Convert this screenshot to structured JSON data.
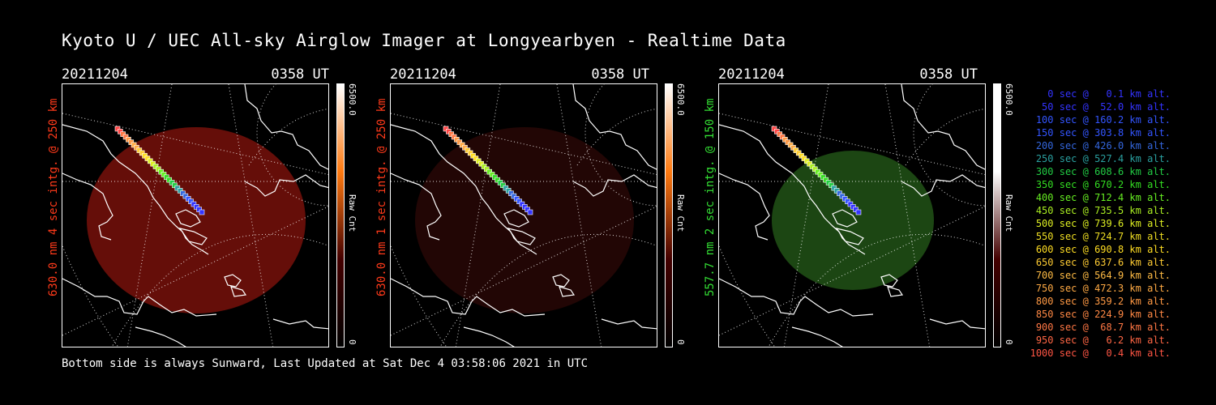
{
  "title": "Kyoto U / UEC All-sky Airglow Imager at Longyearbyen - Realtime Data",
  "footer": "Bottom side is always Sunward, Last Updated at Sat Dec  4 03:58:06 2021 in UTC",
  "panels": [
    {
      "date": "20211204",
      "time": "0358 UT",
      "ylabel": "630.0 nm 4 sec intg. @ 250 km",
      "ylabel_color": "#ff3a1a",
      "cbar_max": "6500.0",
      "cbar_min": "0",
      "cbar_unit": "Raw Cnt",
      "fill": "#6a0f0a",
      "gradient_end": "#ff7a10"
    },
    {
      "date": "20211204",
      "time": "0358 UT",
      "ylabel": "630.0 nm 1 sec intg. @ 250 km",
      "ylabel_color": "#ff3a1a",
      "cbar_max": "6500.0",
      "cbar_min": "0",
      "cbar_unit": "Raw Cnt",
      "fill": "#240605",
      "gradient_end": "#ff7a10"
    },
    {
      "date": "20211204",
      "time": "0358 UT",
      "ylabel": "557.7 nm 2 sec intg. @ 150 km",
      "ylabel_color": "#33dd33",
      "cbar_max": "6500.0",
      "cbar_min": "0",
      "cbar_unit": "Raw Cnt",
      "fill": "#1e4a14",
      "gradient_end": "#ffffff"
    }
  ],
  "legend": [
    {
      "text": "0 sec @   0.1 km alt.",
      "color": "#3333ff"
    },
    {
      "text": "50 sec @  52.0 km alt.",
      "color": "#3333ff"
    },
    {
      "text": "100 sec @ 160.2 km alt.",
      "color": "#3355ff"
    },
    {
      "text": "150 sec @ 303.8 km alt.",
      "color": "#3355ff"
    },
    {
      "text": "200 sec @ 426.0 km alt.",
      "color": "#3366dd"
    },
    {
      "text": "250 sec @ 527.4 km alt.",
      "color": "#2aa0a0"
    },
    {
      "text": "300 sec @ 608.6 km alt.",
      "color": "#22cc44"
    },
    {
      "text": "350 sec @ 670.2 km alt.",
      "color": "#33dd22"
    },
    {
      "text": "400 sec @ 712.4 km alt.",
      "color": "#66ee22"
    },
    {
      "text": "450 sec @ 735.5 km alt.",
      "color": "#aaee22"
    },
    {
      "text": "500 sec @ 739.6 km alt.",
      "color": "#ddee22"
    },
    {
      "text": "550 sec @ 724.7 km alt.",
      "color": "#eedd22"
    },
    {
      "text": "600 sec @ 690.8 km alt.",
      "color": "#ffdd22"
    },
    {
      "text": "650 sec @ 637.6 km alt.",
      "color": "#ffcc33"
    },
    {
      "text": "700 sec @ 564.9 km alt.",
      "color": "#ffbb44"
    },
    {
      "text": "750 sec @ 472.3 km alt.",
      "color": "#ffaa44"
    },
    {
      "text": "800 sec @ 359.2 km alt.",
      "color": "#ff9944"
    },
    {
      "text": "850 sec @ 224.9 km alt.",
      "color": "#ff8844"
    },
    {
      "text": "900 sec @  68.7 km alt.",
      "color": "#ff7744"
    },
    {
      "text": "950 sec @   6.2 km alt.",
      "color": "#ff6644"
    },
    {
      "text": "1000 sec @   0.4 km alt.",
      "color": "#ff5544"
    }
  ],
  "track_colors": [
    "#ff4444",
    "#ff7744",
    "#ff9944",
    "#ffaa44",
    "#ffcc33",
    "#ffdd22",
    "#ddee22",
    "#aaee22",
    "#66ee22",
    "#33dd22",
    "#22cc44",
    "#2aa0a0",
    "#3366dd",
    "#3355ff",
    "#3333ff",
    "#3333ff"
  ]
}
